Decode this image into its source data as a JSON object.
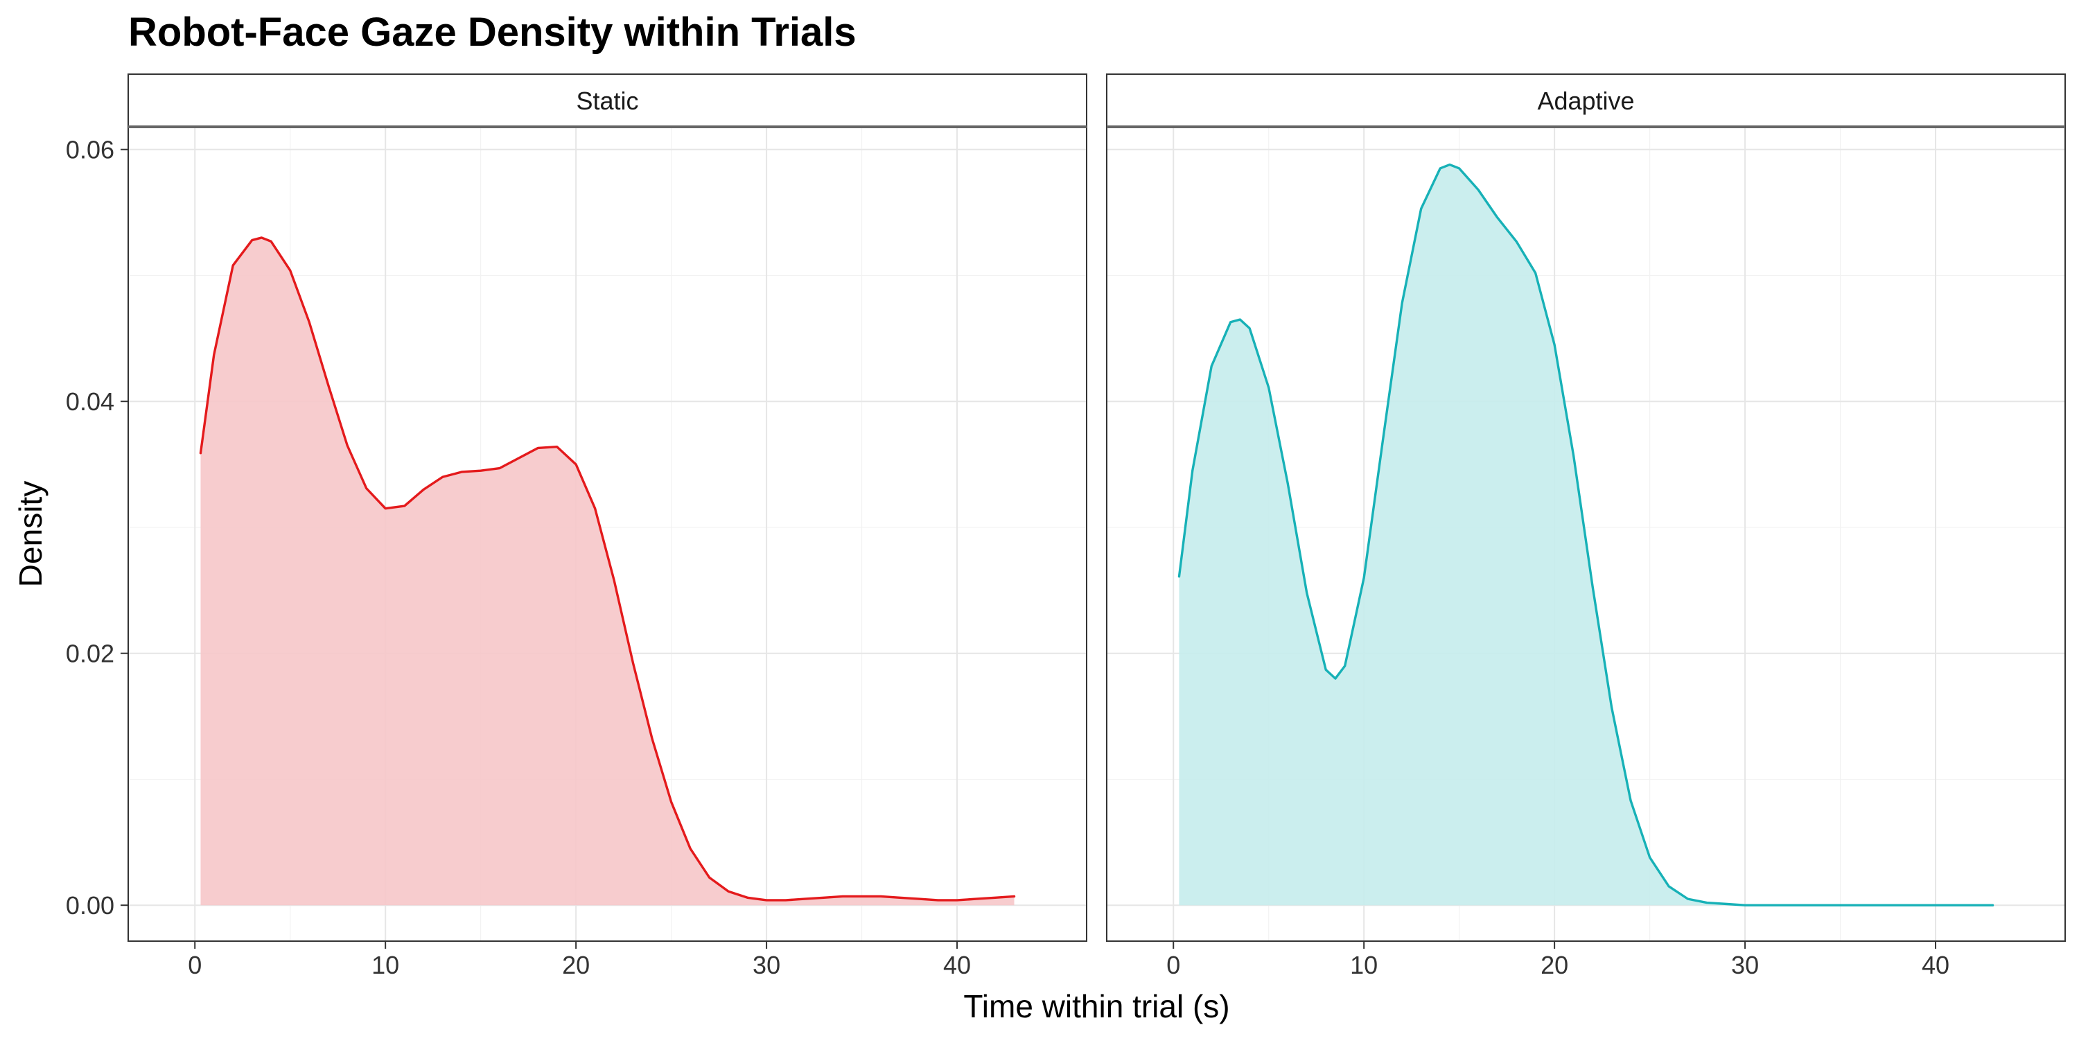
{
  "chart_data": {
    "type": "area",
    "title": "Robot-Face Gaze Density within Trials",
    "xlabel": "Time within trial (s)",
    "ylabel": "Density",
    "xlim": [
      -3.5,
      46.8
    ],
    "ylim": [
      -0.00285,
      0.0618
    ],
    "x_ticks": [
      0,
      10,
      20,
      30,
      40
    ],
    "x_tick_labels": [
      "0",
      "10",
      "20",
      "30",
      "40"
    ],
    "y_ticks": [
      0.0,
      0.02,
      0.04,
      0.06
    ],
    "y_tick_labels": [
      "0.00",
      "0.02",
      "0.04",
      "0.06"
    ],
    "grid": true,
    "legend": "none",
    "facets": [
      {
        "name": "Static",
        "line_color": "#E41A1C",
        "fill_color": "#F6C6C9",
        "x": [
          0.3,
          1,
          2,
          3,
          3.5,
          4,
          5,
          6,
          7,
          8,
          9,
          10,
          11,
          12,
          13,
          14,
          15,
          16,
          17,
          18,
          19,
          20,
          21,
          22,
          23,
          24,
          25,
          26,
          27,
          28,
          29,
          30,
          31,
          32,
          33,
          34,
          35,
          36,
          37,
          38,
          39,
          40,
          41,
          42,
          43
        ],
        "y": [
          0.0359,
          0.0437,
          0.0508,
          0.0528,
          0.053,
          0.0527,
          0.0504,
          0.0463,
          0.0413,
          0.0365,
          0.0331,
          0.0315,
          0.0317,
          0.033,
          0.034,
          0.0344,
          0.0345,
          0.0347,
          0.0355,
          0.0363,
          0.0364,
          0.035,
          0.0315,
          0.0258,
          0.0192,
          0.0132,
          0.0082,
          0.0045,
          0.0022,
          0.0011,
          0.0006,
          0.0004,
          0.0004,
          0.0005,
          0.0006,
          0.0007,
          0.0007,
          0.0007,
          0.0006,
          0.0005,
          0.0004,
          0.0004,
          0.0005,
          0.0006,
          0.0007
        ]
      },
      {
        "name": "Adaptive",
        "line_color": "#17B1B7",
        "fill_color": "#C5ECEC",
        "x": [
          0.3,
          1,
          2,
          3,
          3.5,
          4,
          5,
          6,
          7,
          8,
          8.5,
          9,
          10,
          11,
          12,
          13,
          14,
          14.5,
          15,
          16,
          17,
          18,
          19,
          20,
          21,
          22,
          23,
          24,
          25,
          26,
          27,
          28,
          29,
          30,
          31,
          32,
          34,
          36,
          38,
          40,
          43
        ],
        "y": [
          0.0261,
          0.0345,
          0.0428,
          0.0463,
          0.0465,
          0.0458,
          0.0411,
          0.0335,
          0.0248,
          0.0187,
          0.018,
          0.019,
          0.026,
          0.037,
          0.0478,
          0.0553,
          0.0585,
          0.0588,
          0.0585,
          0.0568,
          0.0546,
          0.0527,
          0.0502,
          0.0445,
          0.0357,
          0.0253,
          0.0157,
          0.0083,
          0.0038,
          0.0015,
          0.0005,
          0.0002,
          0.0001,
          0.0,
          0.0,
          0.0,
          0.0,
          0.0,
          0.0,
          0.0,
          0.0
        ]
      }
    ]
  }
}
